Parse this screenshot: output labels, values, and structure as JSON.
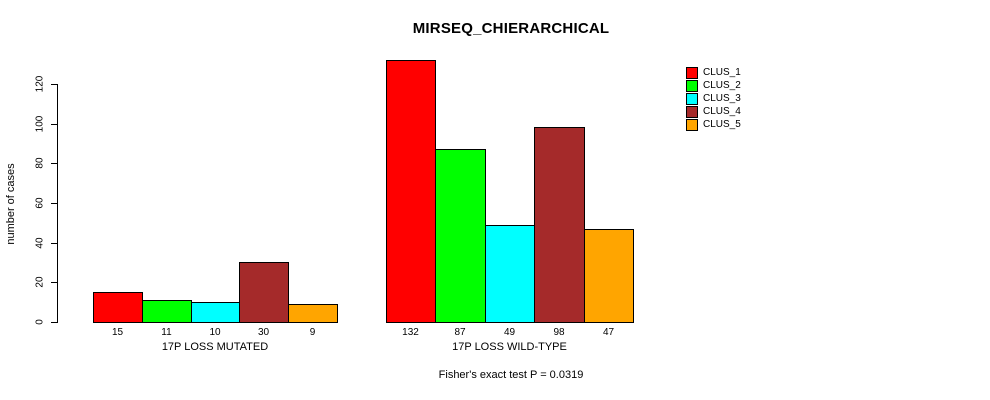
{
  "title": "MIRSEQ_CHIERARCHICAL",
  "subtitle": "Fisher's exact test P = 0.0319",
  "chart_data": {
    "type": "bar",
    "title": "MIRSEQ_CHIERARCHICAL",
    "subtitle": "Fisher's exact test P = 0.0319",
    "ylabel": "number of cases",
    "xlabel": "",
    "yticks": [
      0,
      20,
      40,
      60,
      80,
      100,
      120
    ],
    "ylim": [
      0,
      132
    ],
    "grid": false,
    "legend_position": "right",
    "bar_value_labels": true,
    "categories": [
      "17P LOSS MUTATED",
      "17P LOSS WILD-TYPE"
    ],
    "series": [
      {
        "name": "CLUS_1",
        "color": "#FF0000",
        "values": [
          15,
          132
        ]
      },
      {
        "name": "CLUS_2",
        "color": "#00FF00",
        "values": [
          11,
          87
        ]
      },
      {
        "name": "CLUS_3",
        "color": "#00FFFF",
        "values": [
          10,
          49
        ]
      },
      {
        "name": "CLUS_4",
        "color": "#A52A2A",
        "values": [
          30,
          98
        ]
      },
      {
        "name": "CLUS_5",
        "color": "#FFA500",
        "values": [
          9,
          47
        ]
      }
    ]
  },
  "colors": {
    "background": "#FFFFFF",
    "axis": "#000000",
    "text": "#000000"
  }
}
